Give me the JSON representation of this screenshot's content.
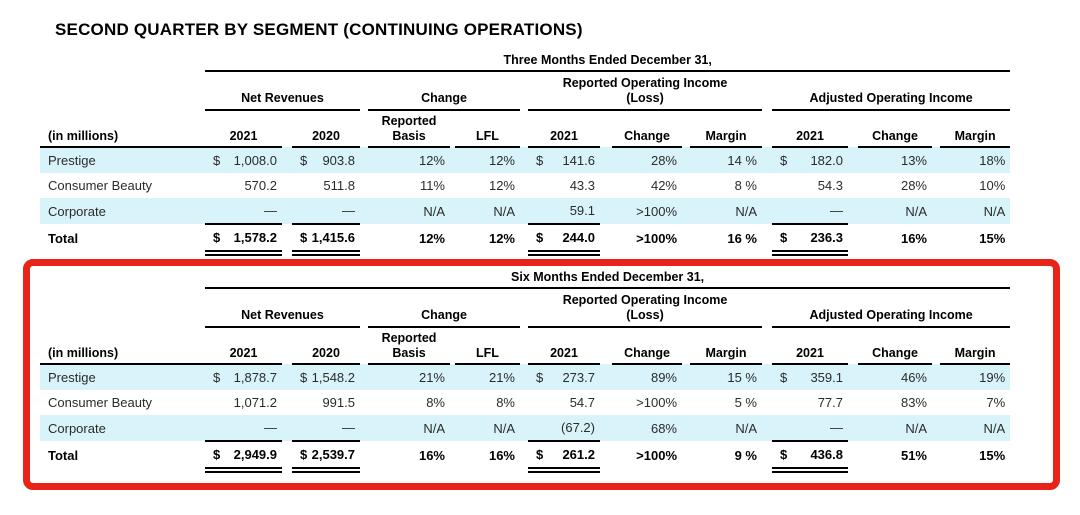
{
  "page": {
    "title": "SECOND QUARTER BY SEGMENT (CONTINUING OPERATIONS)"
  },
  "colors": {
    "highlight_border": "#e82418",
    "row_stripe": "#d9f3fa",
    "rule": "#000000"
  },
  "tables": [
    {
      "period": "Three Months Ended December 31,",
      "groups": [
        "Net Revenues",
        "Change",
        "Reported Operating Income\n(Loss)",
        "Adjusted Operating Income"
      ],
      "columns": [
        "(in millions)",
        "2021",
        "2020",
        "Reported\nBasis",
        "LFL",
        "2021",
        "Change",
        "Margin",
        "2021",
        "Change",
        "Margin"
      ],
      "rows": [
        {
          "label": "Prestige",
          "stripe": true,
          "total": false,
          "cells": [
            {
              "d": "$",
              "v": "1,008.0"
            },
            {
              "d": "$",
              "v": "903.8"
            },
            {
              "v": "12%"
            },
            {
              "v": "12%"
            },
            {
              "d": "$",
              "v": "141.6"
            },
            {
              "v": "28%"
            },
            {
              "v": "14 %"
            },
            {
              "d": "$",
              "v": "182.0"
            },
            {
              "v": "13%"
            },
            {
              "v": "18%"
            }
          ]
        },
        {
          "label": "Consumer Beauty",
          "stripe": false,
          "total": false,
          "cells": [
            {
              "v": "570.2"
            },
            {
              "v": "511.8"
            },
            {
              "v": "11%"
            },
            {
              "v": "12%"
            },
            {
              "v": "43.3"
            },
            {
              "v": "42%"
            },
            {
              "v": "8 %"
            },
            {
              "v": "54.3"
            },
            {
              "v": "28%"
            },
            {
              "v": "10%"
            }
          ]
        },
        {
          "label": "Corporate",
          "stripe": true,
          "total": false,
          "cells": [
            {
              "v": "—"
            },
            {
              "v": "—"
            },
            {
              "v": "N/A"
            },
            {
              "v": "N/A"
            },
            {
              "v": "59.1"
            },
            {
              "v": ">100%"
            },
            {
              "v": "N/A"
            },
            {
              "v": "—"
            },
            {
              "v": "N/A"
            },
            {
              "v": "N/A"
            }
          ]
        },
        {
          "label": "Total",
          "stripe": false,
          "total": true,
          "cells": [
            {
              "d": "$",
              "v": "1,578.2"
            },
            {
              "d": "$",
              "v": "1,415.6"
            },
            {
              "v": "12%"
            },
            {
              "v": "12%"
            },
            {
              "d": "$",
              "v": "244.0"
            },
            {
              "v": ">100%"
            },
            {
              "v": "16 %"
            },
            {
              "d": "$",
              "v": "236.3"
            },
            {
              "v": "16%"
            },
            {
              "v": "15%"
            }
          ]
        }
      ]
    },
    {
      "period": "Six Months Ended December 31,",
      "highlighted": true,
      "groups": [
        "Net Revenues",
        "Change",
        "Reported Operating Income\n(Loss)",
        "Adjusted Operating Income"
      ],
      "columns": [
        "(in millions)",
        "2021",
        "2020",
        "Reported\nBasis",
        "LFL",
        "2021",
        "Change",
        "Margin",
        "2021",
        "Change",
        "Margin"
      ],
      "rows": [
        {
          "label": "Prestige",
          "stripe": true,
          "total": false,
          "cells": [
            {
              "d": "$",
              "v": "1,878.7"
            },
            {
              "d": "$",
              "v": "1,548.2"
            },
            {
              "v": "21%"
            },
            {
              "v": "21%"
            },
            {
              "d": "$",
              "v": "273.7"
            },
            {
              "v": "89%"
            },
            {
              "v": "15 %"
            },
            {
              "d": "$",
              "v": "359.1"
            },
            {
              "v": "46%"
            },
            {
              "v": "19%"
            }
          ]
        },
        {
          "label": "Consumer Beauty",
          "stripe": false,
          "total": false,
          "cells": [
            {
              "v": "1,071.2"
            },
            {
              "v": "991.5"
            },
            {
              "v": "8%"
            },
            {
              "v": "8%"
            },
            {
              "v": "54.7"
            },
            {
              "v": ">100%"
            },
            {
              "v": "5 %"
            },
            {
              "v": "77.7"
            },
            {
              "v": "83%"
            },
            {
              "v": "7%"
            }
          ]
        },
        {
          "label": "Corporate",
          "stripe": true,
          "total": false,
          "cells": [
            {
              "v": "—"
            },
            {
              "v": "—"
            },
            {
              "v": "N/A"
            },
            {
              "v": "N/A"
            },
            {
              "v": "(67.2)"
            },
            {
              "v": "68%"
            },
            {
              "v": "N/A"
            },
            {
              "v": "—"
            },
            {
              "v": "N/A"
            },
            {
              "v": "N/A"
            }
          ]
        },
        {
          "label": "Total",
          "stripe": false,
          "total": true,
          "cells": [
            {
              "d": "$",
              "v": "2,949.9"
            },
            {
              "d": "$",
              "v": "2,539.7"
            },
            {
              "v": "16%"
            },
            {
              "v": "16%"
            },
            {
              "d": "$",
              "v": "261.2"
            },
            {
              "v": ">100%"
            },
            {
              "v": "9 %"
            },
            {
              "d": "$",
              "v": "436.8"
            },
            {
              "v": "51%"
            },
            {
              "v": "15%"
            }
          ]
        }
      ]
    }
  ]
}
